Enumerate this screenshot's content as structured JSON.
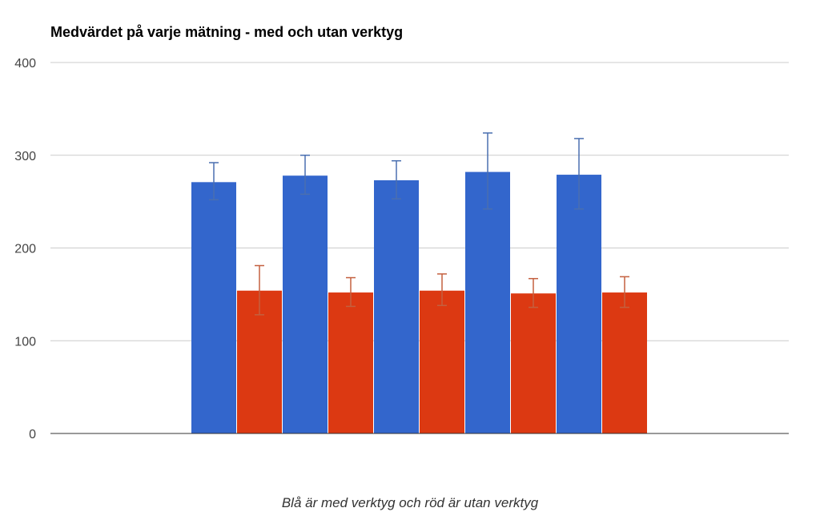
{
  "chart_data": {
    "type": "bar",
    "title": "Medvärdet på varje mätning - med och utan verktyg",
    "xlabel": "Blå är med verktyg och röd är utan verktyg",
    "ylabel": "",
    "ylim": [
      0,
      400
    ],
    "yticks": [
      "0",
      "100",
      "200",
      "300",
      "400"
    ],
    "grid": true,
    "categories": [
      "",
      "",
      "",
      "",
      ""
    ],
    "series": [
      {
        "color": "#3366cc",
        "values": [
          271,
          278,
          273,
          282,
          279
        ],
        "error_low": [
          252,
          258,
          253,
          242,
          242
        ],
        "error_high": [
          292,
          300,
          294,
          324,
          318
        ]
      },
      {
        "color": "#dc3912",
        "values": [
          154,
          152,
          154,
          151,
          152
        ],
        "error_low": [
          128,
          137,
          138,
          136,
          136
        ],
        "error_high": [
          181,
          168,
          172,
          167,
          169
        ]
      }
    ]
  }
}
